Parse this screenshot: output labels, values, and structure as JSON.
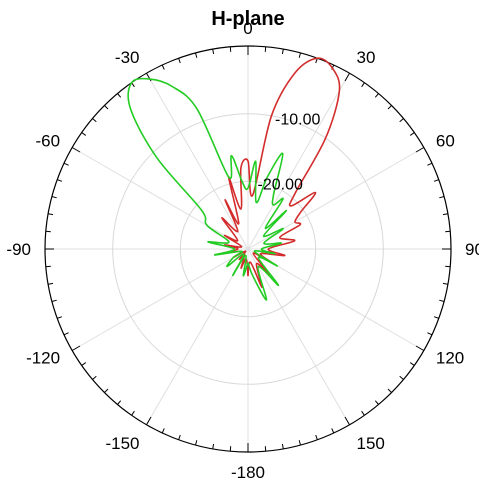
{
  "chart_data": {
    "type": "polar-line",
    "title": "H-plane",
    "angle_ticks": [
      {
        "deg": 0,
        "label": "0"
      },
      {
        "deg": 30,
        "label": "30"
      },
      {
        "deg": 60,
        "label": "60"
      },
      {
        "deg": 90,
        "label": "90"
      },
      {
        "deg": 120,
        "label": "120"
      },
      {
        "deg": 150,
        "label": "150"
      },
      {
        "deg": 180,
        "label": "-180"
      },
      {
        "deg": -150,
        "label": "-150"
      },
      {
        "deg": -120,
        "label": "-120"
      },
      {
        "deg": -90,
        "label": "-90"
      },
      {
        "deg": -60,
        "label": "-60"
      },
      {
        "deg": -30,
        "label": "-30"
      }
    ],
    "radial_axis": {
      "min": -30,
      "max": 0,
      "rings": [
        -10,
        -20
      ],
      "ring_labels": [
        "-10.00",
        "-20.00"
      ],
      "label_angle_deg": 15
    },
    "grid": true,
    "series": [
      {
        "color": "#d42c2c",
        "angles_deg": [
          -180,
          -170,
          -160,
          -150,
          -140,
          -130,
          -120,
          -110,
          -100,
          -90,
          -80,
          -70,
          -60,
          -50,
          -40,
          -30,
          -25,
          -20,
          -15,
          -10,
          -5,
          0,
          5,
          10,
          15,
          20,
          25,
          30,
          35,
          40,
          45,
          50,
          55,
          60,
          65,
          70,
          80,
          90,
          100,
          110,
          120,
          130,
          140,
          150,
          160,
          170,
          180
        ],
        "values_db": [
          -26,
          -28.5,
          -27,
          -29,
          -28,
          -29.5,
          -27.5,
          -29,
          -26,
          -28.5,
          -26.5,
          -29,
          -26,
          -28,
          -24,
          -27,
          -22,
          -26,
          -19,
          -24,
          -18,
          -17,
          -22,
          -10,
          -3,
          0,
          -0.5,
          -3,
          -10,
          -19,
          -21,
          -17,
          -20.5,
          -22,
          -21.5,
          -25,
          -23,
          -27,
          -24.5,
          -28,
          -26,
          -29,
          -25,
          -27.5,
          -24,
          -28,
          -26
        ]
      },
      {
        "color": "#22cc22",
        "angles_deg": [
          -180,
          -170,
          -160,
          -150,
          -140,
          -130,
          -120,
          -110,
          -100,
          -90,
          -80,
          -70,
          -60,
          -50,
          -45,
          -40,
          -35,
          -30,
          -25,
          -20,
          -15,
          -10,
          -5,
          0,
          5,
          10,
          15,
          20,
          25,
          30,
          35,
          40,
          45,
          50,
          60,
          70,
          80,
          90,
          100,
          110,
          120,
          130,
          140,
          150,
          160,
          170,
          180
        ],
        "values_db": [
          -28,
          -26,
          -29,
          -25.5,
          -29,
          -26,
          -27.5,
          -29,
          -25,
          -28,
          -24,
          -27,
          -23,
          -21,
          -11,
          -3,
          0,
          -1,
          -3.5,
          -8,
          -19,
          -16,
          -20,
          -21,
          -17,
          -23,
          -19,
          -15,
          -21,
          -22.5,
          -21,
          -26,
          -22,
          -27,
          -24,
          -27.5,
          -25,
          -28,
          -26,
          -29,
          -25,
          -28,
          -23,
          -27,
          -22,
          -26,
          -28
        ]
      }
    ]
  }
}
